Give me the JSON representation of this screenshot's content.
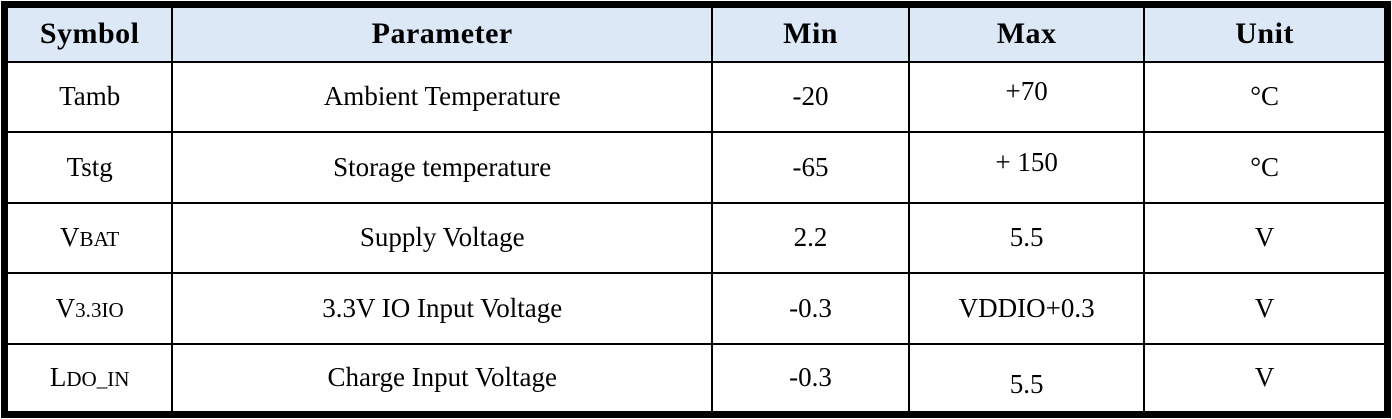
{
  "table": {
    "title": "absolute-maximum-ratings",
    "colors": {
      "header_bg": "#dce8f5",
      "border": "#000000",
      "text": "#000000"
    },
    "headers": {
      "symbol": "Symbol",
      "parameter": "Parameter",
      "min": "Min",
      "max": "Max",
      "unit": "Unit"
    },
    "rows": [
      {
        "symbol_base": "Tamb",
        "symbol_sub": "",
        "parameter": "Ambient Temperature",
        "min": "-20",
        "max": "+70",
        "unit": "°C"
      },
      {
        "symbol_base": "Tstg",
        "symbol_sub": "",
        "parameter": "Storage temperature",
        "min": "-65",
        "max": "+ 150",
        "unit": "°C"
      },
      {
        "symbol_base": "V",
        "symbol_sub": "BAT",
        "parameter": "Supply Voltage",
        "min": "2.2",
        "max": "5.5",
        "unit": "V"
      },
      {
        "symbol_base": "V",
        "symbol_sub": "3.3IO",
        "parameter": "3.3V IO Input Voltage",
        "min": "-0.3",
        "max": "VDDIO+0.3",
        "unit": "V"
      },
      {
        "symbol_base": "L",
        "symbol_sub": "DO_IN",
        "parameter": "Charge Input Voltage",
        "min": "-0.3",
        "max": "5.5",
        "unit": "V"
      }
    ]
  }
}
